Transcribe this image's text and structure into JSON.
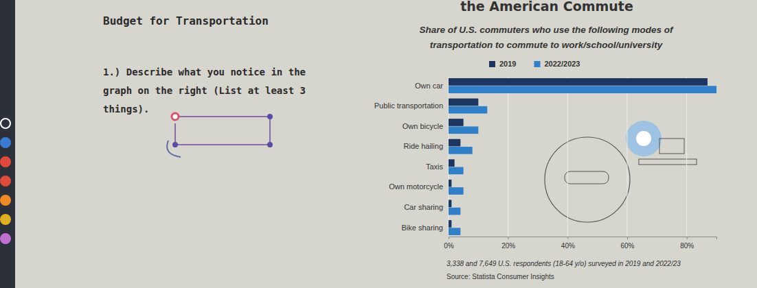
{
  "worksheet": {
    "heading": "Budget for Transportation",
    "question": [
      "1.) Describe what you notice in the",
      "graph on the right (List at least 3",
      "things)."
    ]
  },
  "chart_data": {
    "type": "bar",
    "orientation": "horizontal",
    "title": "the American Commute",
    "subtitle": [
      "Share of U.S. commuters who use the following modes of",
      "transportation to commute to work/school/university"
    ],
    "categories": [
      "Own car",
      "Public transportation",
      "Own bicycle",
      "Ride hailing",
      "Taxis",
      "Own motorcycle",
      "Car sharing",
      "Bike sharing"
    ],
    "series": [
      {
        "name": "2019",
        "color": "#1c3561",
        "values": [
          87,
          10,
          5,
          4,
          2,
          1,
          1,
          1
        ]
      },
      {
        "name": "2022/2023",
        "color": "#2f80c8",
        "values": [
          90,
          13,
          10,
          8,
          5,
          5,
          4,
          4
        ]
      }
    ],
    "xlim": [
      0,
      90
    ],
    "xticks": [
      {
        "value": 0,
        "label": "0%"
      },
      {
        "value": 20,
        "label": "20%"
      },
      {
        "value": 40,
        "label": "40%"
      },
      {
        "value": 60,
        "label": "60%"
      },
      {
        "value": 80,
        "label": "80%"
      }
    ],
    "grid": true,
    "legend": "top",
    "note": "3,338 and 7,649 U.S. respondents (18-64 y/o) surveyed in 2019 and 2022/23",
    "source": "Source: Statista Consumer Insights"
  }
}
